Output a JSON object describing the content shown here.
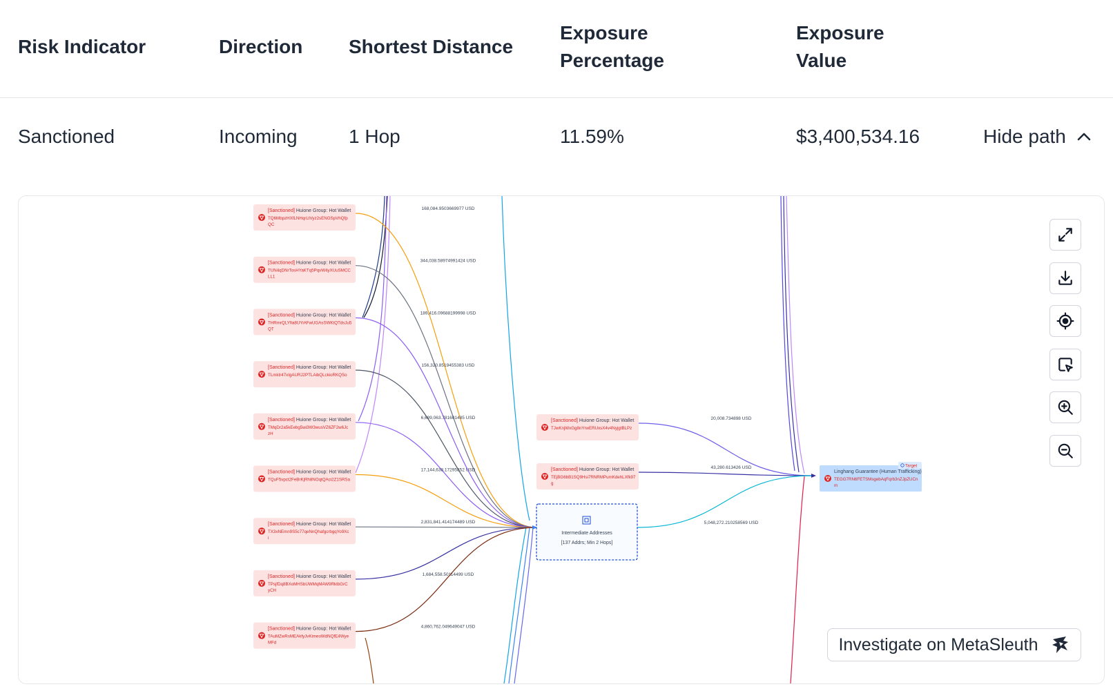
{
  "table": {
    "headers": {
      "risk_indicator": "Risk Indicator",
      "direction": "Direction",
      "shortest_distance": "Shortest Distance",
      "exposure_percentage_line1": "Exposure",
      "exposure_percentage_line2": "Percentage",
      "exposure_value_line1": "Exposure",
      "exposure_value_line2": "Value"
    },
    "row": {
      "risk_indicator": "Sanctioned",
      "direction": "Incoming",
      "shortest_distance": "1 Hop",
      "exposure_percentage": "11.59%",
      "exposure_value": "$3,400,534.16",
      "toggle_label": "Hide path"
    }
  },
  "graph": {
    "source_nodes": [
      {
        "tag": "[Sanctioned]",
        "title": "Huione Group: Hot Wallet",
        "addr1": "TQ6MbpzHXfLNHqrLtVyz2sENGSpVhQfp",
        "addr2": "QC",
        "edge_label": "168,084.9503669977 USD",
        "color": "#f59e0b"
      },
      {
        "tag": "[Sanctioned]",
        "title": "Huione Group: Hot Wallet",
        "addr1": "TUN4qDNrTosHYaKTq5PqvW4yXUuSMCC",
        "addr2": "LL1",
        "edge_label": "344,038.58974991424 USD",
        "color": "#6b7280"
      },
      {
        "tag": "[Sanctioned]",
        "title": "Huione Group: Hot Wallet",
        "addr1": "THRmrQLYfia8UYiAFwUGAsSWKtQTdsJu5",
        "addr2": "QT",
        "edge_label": "189,416.09688199998 USD",
        "color": "#8b5cf6"
      },
      {
        "tag": "[Sanctioned]",
        "title": "Huione Group: Hot Wallet",
        "addr1": "TLmktr47xIgAURJ2PTLAibQLckioRKQSo",
        "addr2": "",
        "edge_label": "156,320.8519455383 USD",
        "color": "#4b5563"
      },
      {
        "tag": "[Sanctioned]",
        "title": "Huione Group: Hot Wallet",
        "addr1": "TMqDr2a5kEebg5wi3W3wusVZ6ZF2w6Jc",
        "addr2": "zH",
        "edge_label": "6,699,063.781601485 USD",
        "color": "#8b5cf6"
      },
      {
        "tag": "[Sanctioned]",
        "title": "Huione Group: Hot Wallet",
        "addr1": "TQuF5vpct2FeBrKjRh8NOqtQAci2Z1SRSa",
        "addr2": "",
        "edge_label": "17,144,638.17295852 USD",
        "color": "#f59e0b"
      },
      {
        "tag": "[Sanctioned]",
        "title": "Huione Group: Hot Wallet",
        "addr1": "TX3xNEmn9S5c77qeNnQhafgcrbgqYo9Xc",
        "addr2": "i",
        "edge_label": "2,831,841.414174489 USD",
        "color": "#6b7280"
      },
      {
        "tag": "[Sanctioned]",
        "title": "Huione Group: Hot Wallet",
        "addr1": "TPsjfDq8BXoMHSbUWMqMAW9RktbGrC",
        "addr2": "yCH",
        "edge_label": "1,684,558.50114499 USD",
        "color": "#3730a3"
      },
      {
        "tag": "[Sanctioned]",
        "title": "Huione Group: Hot Wallet",
        "addr1": "TAuMZwRsMEAkfyJvKimeoWdNQfE4Wye",
        "addr2": "MFd",
        "edge_label": "4,860,762.049649047 USD",
        "color": "#7c2d12"
      }
    ],
    "middle_nodes": [
      {
        "tag": "[Sanctioned]",
        "title": "Huione Group: Hot Wallet",
        "addr1": "TJwKnjWxGg8nYrwERUxsX4v4NyjgtBLPz",
        "addr2": "",
        "edge_label": "20,008.734898 USD",
        "color": "#6d5ee8"
      },
      {
        "tag": "[Sanctioned]",
        "title": "Huione Group: Hot Wallet",
        "addr1": "TEjBG6bB1SQ9Hsi7RNRMPumKdehLXfk97",
        "addr2": "g",
        "edge_label": "43,280.613426 USD",
        "color": "#3730a3"
      }
    ],
    "intermediate": {
      "title": "Intermediate Addresses",
      "subtitle": "[137 Addrs; Min 2 Hops]",
      "edge_label": "5,048,272.210258569 USD",
      "color": "#06b6d4"
    },
    "target": {
      "badge": "Target",
      "title": "Linghang Guarantee (Human Trafficking)",
      "addr1": "TEGG7RN6FETSMsgebAqFqrb3nZJpZUCn",
      "addr2": "m"
    },
    "accent_color": "#3b82f6",
    "sanction_color": "#dc2626"
  },
  "toolbar": {
    "buttons": [
      {
        "name": "fullscreen-button",
        "icon": "expand-icon"
      },
      {
        "name": "download-button",
        "icon": "download-icon"
      },
      {
        "name": "locate-button",
        "icon": "crosshair-icon"
      },
      {
        "name": "select-button",
        "icon": "cursor-select-icon"
      },
      {
        "name": "zoom-in-button",
        "icon": "zoom-in-icon"
      },
      {
        "name": "zoom-out-button",
        "icon": "zoom-out-icon"
      }
    ]
  },
  "investigate": {
    "label": "Investigate on MetaSleuth",
    "icon": "metasleuth-logo-icon"
  }
}
